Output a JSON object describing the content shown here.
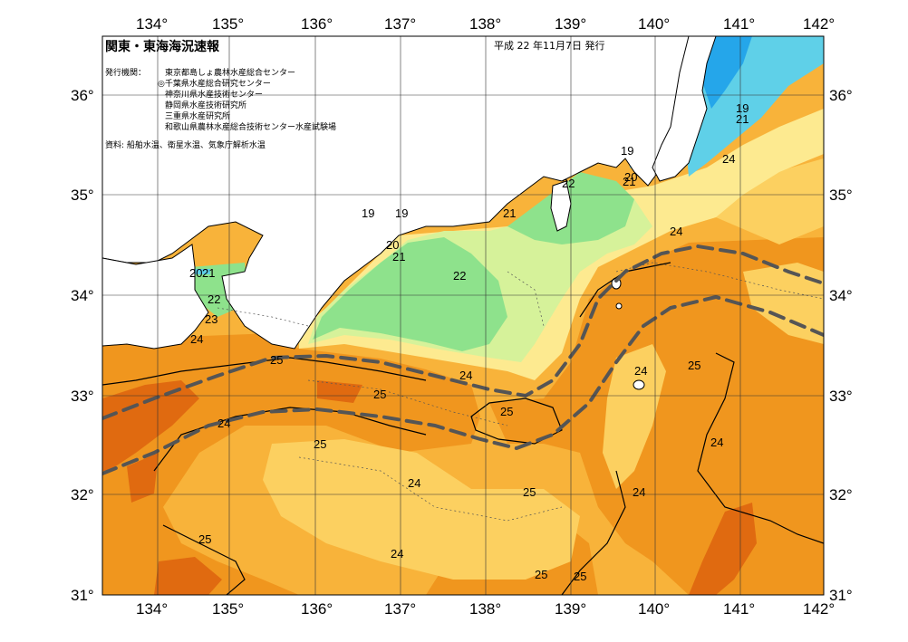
{
  "header": {
    "title": "関東・東海海況速報",
    "issue_date": "平成 22 年11月7日 発行",
    "issuer_label": "発行機関：",
    "issuers": [
      "東京都島しょ農林水産総合センター",
      "◎千葉県水産総合研究センター",
      "神奈川県水産技術センター",
      "静岡県水産技術研究所",
      "三重県水産研究所",
      "和歌山県農林水産総合技術センター水産試験場"
    ],
    "sources": "資料: 船舶水温、衛星水温、気象庁解析水温"
  },
  "axes": {
    "longitudes": [
      "134°",
      "135°",
      "136°",
      "137°",
      "138°",
      "139°",
      "140°",
      "141°",
      "142°"
    ],
    "latitudes": [
      "36°",
      "35°",
      "34°",
      "33°",
      "32°",
      "31°"
    ]
  },
  "legend_colors": {
    "temp_25_plus": "#f0961e",
    "temp_24_25": "#f8b33a",
    "temp_23_24": "#fcd060",
    "temp_22_23": "#fdea90",
    "temp_21_22": "#d6f29a",
    "temp_20_21": "#8ee28c",
    "temp_19_20": "#5fd0e8",
    "temp_below_19": "#25a6ea",
    "warm_core": "#e06a10",
    "kuroshio_axis": "#555555"
  },
  "isotherm_labels": [
    {
      "id": "l1",
      "text": "19"
    },
    {
      "id": "l2",
      "text": "21"
    },
    {
      "id": "l3",
      "text": "24"
    },
    {
      "id": "l4",
      "text": "19"
    },
    {
      "id": "l5",
      "text": "20"
    },
    {
      "id": "l6",
      "text": "21"
    },
    {
      "id": "l7",
      "text": "22"
    },
    {
      "id": "l8",
      "text": "19"
    },
    {
      "id": "l9",
      "text": "19"
    },
    {
      "id": "l10",
      "text": "20"
    },
    {
      "id": "l11",
      "text": "21"
    },
    {
      "id": "l12",
      "text": "21"
    },
    {
      "id": "l13",
      "text": "24"
    },
    {
      "id": "l14",
      "text": "22"
    },
    {
      "id": "l15",
      "text": "20"
    },
    {
      "id": "l16",
      "text": "21"
    },
    {
      "id": "l17",
      "text": "22"
    },
    {
      "id": "l18",
      "text": "23"
    },
    {
      "id": "l19",
      "text": "24"
    },
    {
      "id": "l20",
      "text": "25"
    },
    {
      "id": "l21",
      "text": "24"
    },
    {
      "id": "l22",
      "text": "25"
    },
    {
      "id": "l23",
      "text": "24"
    },
    {
      "id": "l24",
      "text": "25"
    },
    {
      "id": "l25",
      "text": "25"
    },
    {
      "id": "l26",
      "text": "24"
    },
    {
      "id": "l27",
      "text": "25"
    },
    {
      "id": "l28",
      "text": "24"
    },
    {
      "id": "l29",
      "text": "24"
    },
    {
      "id": "l30",
      "text": "25"
    },
    {
      "id": "l31",
      "text": "24"
    },
    {
      "id": "l32",
      "text": "25"
    },
    {
      "id": "l33",
      "text": "24"
    },
    {
      "id": "l34",
      "text": "25"
    }
  ]
}
